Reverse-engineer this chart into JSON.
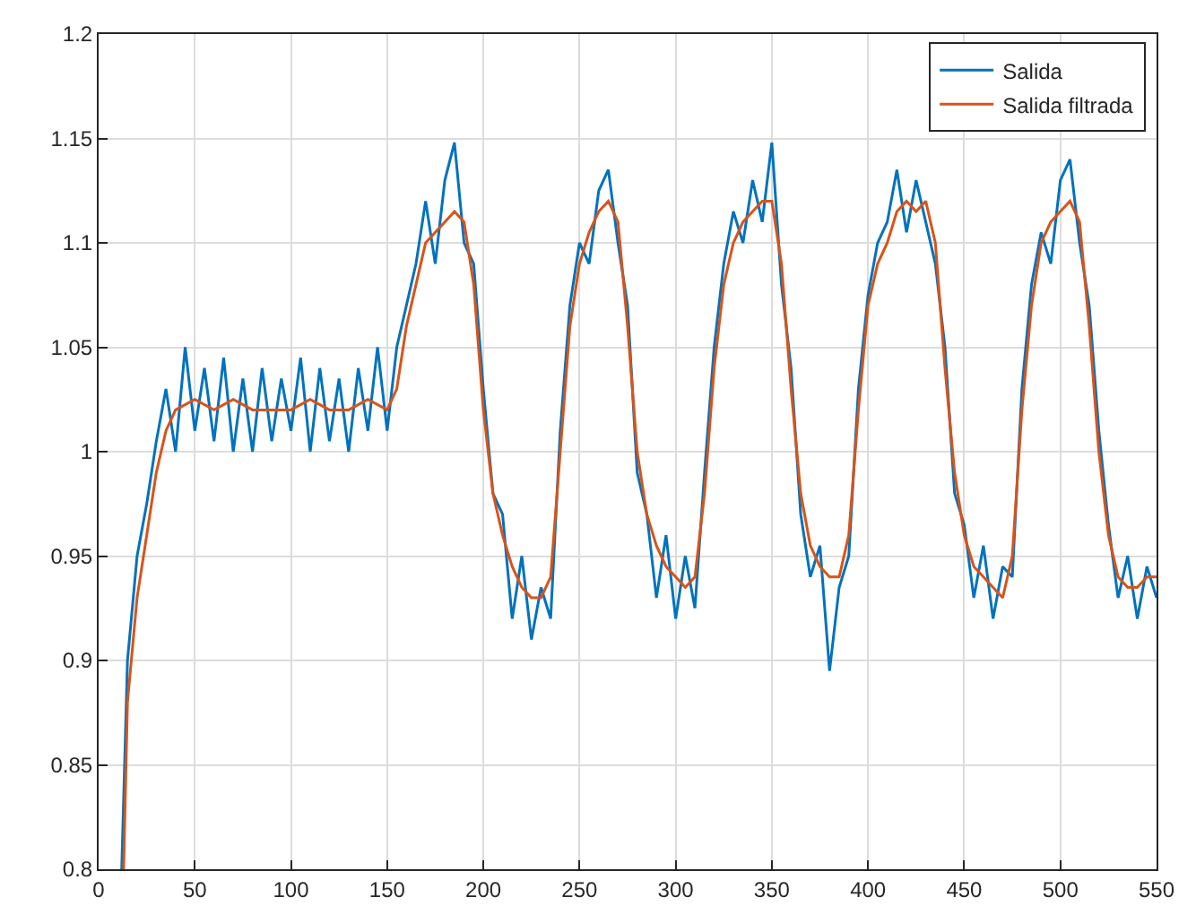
{
  "chart_data": {
    "type": "line",
    "xlim": [
      0,
      550
    ],
    "ylim": [
      0.8,
      1.2
    ],
    "xticks": [
      0,
      50,
      100,
      150,
      200,
      250,
      300,
      350,
      400,
      450,
      500,
      550
    ],
    "yticks": [
      0.8,
      0.85,
      0.9,
      0.95,
      1,
      1.05,
      1.1,
      1.15,
      1.2
    ],
    "grid": true,
    "legend": "top right",
    "marker": "none",
    "line_style": "solid",
    "series": [
      {
        "name": "Salida",
        "color": "#0072bd",
        "x": [
          12,
          15,
          20,
          25,
          30,
          35,
          40,
          45,
          50,
          55,
          60,
          65,
          70,
          75,
          80,
          85,
          90,
          95,
          100,
          105,
          110,
          115,
          120,
          125,
          130,
          135,
          140,
          145,
          150,
          155,
          160,
          165,
          170,
          175,
          180,
          185,
          190,
          195,
          200,
          205,
          210,
          215,
          220,
          225,
          230,
          235,
          240,
          245,
          250,
          255,
          260,
          265,
          270,
          275,
          280,
          285,
          290,
          295,
          300,
          305,
          310,
          315,
          320,
          325,
          330,
          335,
          340,
          345,
          350,
          355,
          360,
          365,
          370,
          375,
          380,
          385,
          390,
          395,
          400,
          405,
          410,
          415,
          420,
          425,
          430,
          435,
          440,
          445,
          450,
          455,
          460,
          465,
          470,
          475,
          480,
          485,
          490,
          495,
          500,
          505,
          510,
          515,
          520,
          525,
          530,
          535,
          540,
          545,
          550
        ],
        "values": [
          0.8,
          0.9,
          0.95,
          0.975,
          1.005,
          1.03,
          1.0,
          1.05,
          1.01,
          1.04,
          1.005,
          1.045,
          1.0,
          1.035,
          1.0,
          1.04,
          1.005,
          1.035,
          1.01,
          1.045,
          1.0,
          1.04,
          1.005,
          1.035,
          1.0,
          1.04,
          1.01,
          1.05,
          1.01,
          1.05,
          1.07,
          1.09,
          1.12,
          1.09,
          1.13,
          1.148,
          1.1,
          1.09,
          1.03,
          0.98,
          0.97,
          0.92,
          0.95,
          0.91,
          0.935,
          0.92,
          1.01,
          1.07,
          1.1,
          1.09,
          1.125,
          1.135,
          1.1,
          1.07,
          0.99,
          0.97,
          0.93,
          0.96,
          0.92,
          0.95,
          0.925,
          0.99,
          1.05,
          1.09,
          1.115,
          1.1,
          1.13,
          1.11,
          1.148,
          1.08,
          1.04,
          0.97,
          0.94,
          0.955,
          0.895,
          0.935,
          0.95,
          1.03,
          1.075,
          1.1,
          1.11,
          1.135,
          1.105,
          1.13,
          1.11,
          1.09,
          1.05,
          0.98,
          0.965,
          0.93,
          0.955,
          0.92,
          0.945,
          0.94,
          1.03,
          1.08,
          1.105,
          1.09,
          1.13,
          1.14,
          1.1,
          1.07,
          1.01,
          0.965,
          0.93,
          0.95,
          0.92,
          0.945,
          0.93
        ]
      },
      {
        "name": "Salida filtrada",
        "color": "#d95319",
        "x": [
          13,
          15,
          20,
          25,
          30,
          35,
          40,
          50,
          60,
          70,
          80,
          90,
          100,
          110,
          120,
          130,
          140,
          150,
          155,
          160,
          165,
          170,
          175,
          180,
          185,
          190,
          195,
          200,
          205,
          210,
          215,
          220,
          225,
          230,
          235,
          240,
          245,
          250,
          255,
          260,
          265,
          270,
          275,
          280,
          285,
          290,
          295,
          300,
          305,
          310,
          315,
          320,
          325,
          330,
          335,
          340,
          345,
          350,
          355,
          360,
          365,
          370,
          375,
          380,
          385,
          390,
          395,
          400,
          405,
          410,
          415,
          420,
          425,
          430,
          435,
          440,
          445,
          450,
          455,
          460,
          465,
          470,
          475,
          480,
          485,
          490,
          495,
          500,
          505,
          510,
          515,
          520,
          525,
          530,
          535,
          540,
          545,
          550
        ],
        "values": [
          0.8,
          0.88,
          0.93,
          0.96,
          0.99,
          1.01,
          1.02,
          1.025,
          1.02,
          1.025,
          1.02,
          1.02,
          1.02,
          1.025,
          1.02,
          1.02,
          1.025,
          1.02,
          1.03,
          1.06,
          1.08,
          1.1,
          1.105,
          1.11,
          1.115,
          1.11,
          1.08,
          1.02,
          0.98,
          0.96,
          0.945,
          0.935,
          0.93,
          0.93,
          0.94,
          1.0,
          1.06,
          1.09,
          1.105,
          1.115,
          1.12,
          1.11,
          1.06,
          1.0,
          0.97,
          0.955,
          0.945,
          0.94,
          0.935,
          0.94,
          0.98,
          1.04,
          1.08,
          1.1,
          1.11,
          1.115,
          1.12,
          1.12,
          1.09,
          1.03,
          0.98,
          0.955,
          0.945,
          0.94,
          0.94,
          0.96,
          1.02,
          1.07,
          1.09,
          1.1,
          1.115,
          1.12,
          1.115,
          1.12,
          1.1,
          1.04,
          0.99,
          0.96,
          0.945,
          0.94,
          0.935,
          0.93,
          0.95,
          1.02,
          1.07,
          1.1,
          1.11,
          1.115,
          1.12,
          1.11,
          1.06,
          1.0,
          0.96,
          0.94,
          0.935,
          0.935,
          0.94,
          0.94
        ]
      }
    ]
  }
}
